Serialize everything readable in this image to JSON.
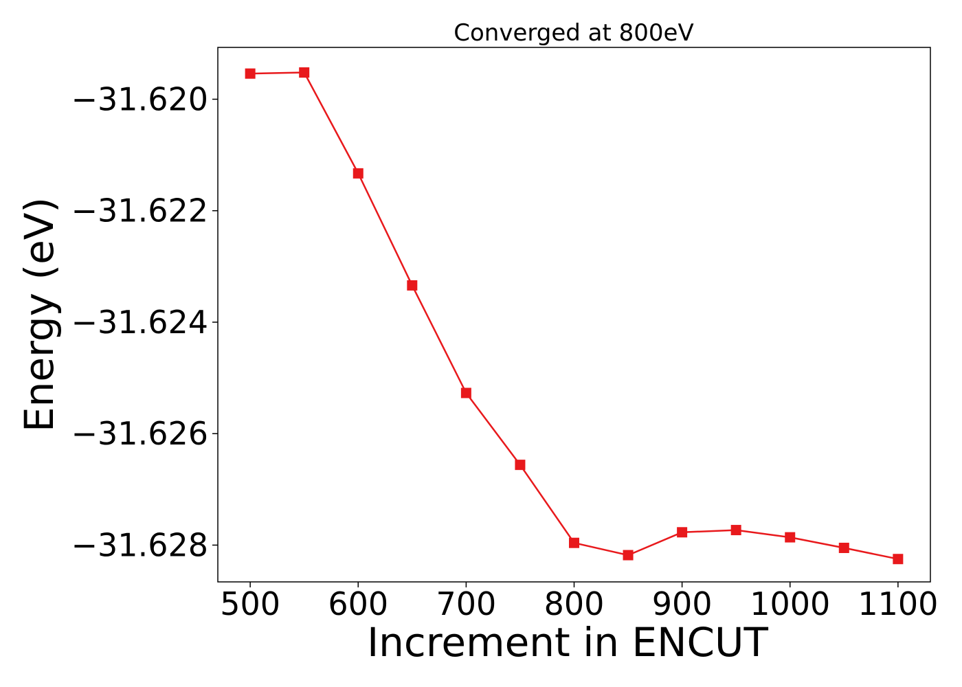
{
  "chart_data": {
    "type": "line",
    "title": "Converged at 800eV",
    "xlabel": "Increment in ENCUT",
    "ylabel": "Energy (eV)",
    "x": [
      500,
      550,
      600,
      650,
      700,
      750,
      800,
      850,
      900,
      950,
      1000,
      1050,
      1100
    ],
    "series": [
      {
        "values": [
          -31.61954,
          -31.61952,
          -31.62133,
          -31.62334,
          -31.62527,
          -31.62656,
          -31.62796,
          -31.62818,
          -31.62777,
          -31.62773,
          -31.62786,
          -31.62805,
          -31.62825
        ],
        "color": "#e8191c",
        "marker": "square"
      }
    ],
    "xlim": [
      470,
      1130
    ],
    "ylim": [
      -31.62866,
      -31.61907
    ],
    "xticks": [
      500,
      600,
      700,
      800,
      900,
      1000,
      1100
    ],
    "xtick_labels": [
      "500",
      "600",
      "700",
      "800",
      "900",
      "1000",
      "1100"
    ],
    "yticks": [
      -31.62,
      -31.622,
      -31.624,
      -31.626,
      -31.628
    ],
    "ytick_labels": [
      "−31.620",
      "−31.622",
      "−31.624",
      "−31.626",
      "−31.628"
    ],
    "grid": false
  }
}
